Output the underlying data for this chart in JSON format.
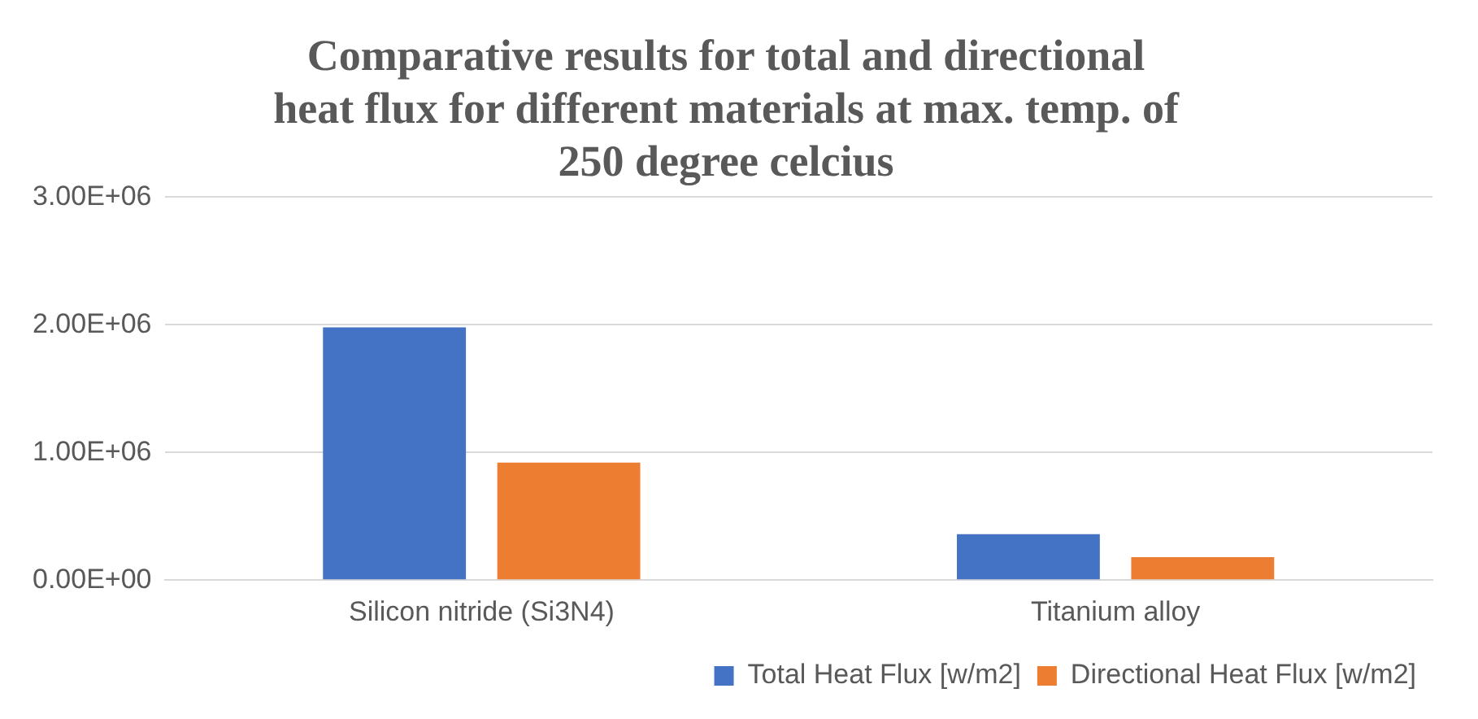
{
  "chart_data": {
    "type": "bar",
    "title": "Comparative results for total and directional heat flux for different materials at max. temp. of 250 degree celcius",
    "categories": [
      "Silicon nitride (Si3N4)",
      "Titanium alloy"
    ],
    "series": [
      {
        "name": "Total Heat Flux [w/m2]",
        "color": "#4472c4",
        "values": [
          1980000,
          360000
        ]
      },
      {
        "name": "Directional Heat Flux [w/m2]",
        "color": "#ed7d31",
        "values": [
          920000,
          180000
        ]
      }
    ],
    "ylim": [
      0,
      3000000
    ],
    "yticks": [
      {
        "value": 0,
        "label": "0.00E+00"
      },
      {
        "value": 1000000,
        "label": "1.00E+06"
      },
      {
        "value": 2000000,
        "label": "2.00E+06"
      },
      {
        "value": 3000000,
        "label": "3.00E+06"
      }
    ],
    "grid": "y",
    "legend": "bottom"
  }
}
